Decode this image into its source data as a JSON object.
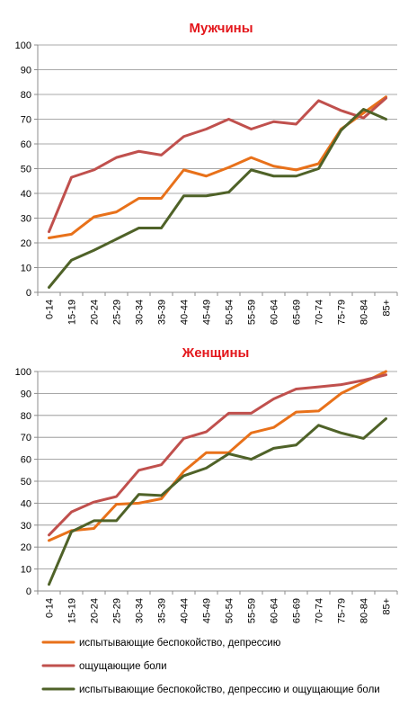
{
  "chart_data": [
    {
      "type": "line",
      "title": "Мужчины",
      "categories": [
        "0-14",
        "15-19",
        "20-24",
        "25-29",
        "30-34",
        "35-39",
        "40-44",
        "45-49",
        "50-54",
        "55-59",
        "60-64",
        "65-69",
        "70-74",
        "75-79",
        "80-84",
        "85+"
      ],
      "ylim": [
        0,
        100
      ],
      "yticks": [
        0,
        10,
        20,
        30,
        40,
        50,
        60,
        70,
        80,
        90,
        100
      ],
      "grid": true,
      "series": [
        {
          "name": "испытывающие беспокойство, депрессию",
          "color": "#e8711a",
          "values": [
            22,
            23.5,
            30.5,
            32.5,
            38,
            38,
            49.5,
            47,
            50.5,
            54.5,
            51,
            49.5,
            52,
            66,
            72.5,
            79
          ]
        },
        {
          "name": "ощущающие боли",
          "color": "#c0504d",
          "values": [
            24.5,
            46.5,
            49.5,
            54.5,
            57,
            55.5,
            63,
            66,
            70,
            66,
            69,
            68,
            77.5,
            73.5,
            70.5,
            78.5
          ]
        },
        {
          "name": "испытывающие беспокойство, депрессию и ощущающие боли",
          "color": "#4f6228",
          "values": [
            2,
            13,
            17,
            21.5,
            26,
            26,
            39,
            39,
            40.5,
            49.5,
            47,
            47,
            50,
            65.5,
            74,
            70
          ]
        }
      ]
    },
    {
      "type": "line",
      "title": "Женщины",
      "categories": [
        "0-14",
        "15-19",
        "20-24",
        "25-29",
        "30-34",
        "35-39",
        "40-44",
        "45-49",
        "50-54",
        "55-59",
        "60-64",
        "65-69",
        "70-74",
        "75-79",
        "80-84",
        "85+"
      ],
      "ylim": [
        0,
        100
      ],
      "yticks": [
        0,
        10,
        20,
        30,
        40,
        50,
        60,
        70,
        80,
        90,
        100
      ],
      "grid": true,
      "series": [
        {
          "name": "испытывающие беспокойство, депрессию",
          "color": "#e8711a",
          "values": [
            23,
            27.5,
            28.5,
            39.5,
            40,
            42,
            54.5,
            63,
            63,
            72,
            74.5,
            81.5,
            82,
            90,
            95,
            100
          ]
        },
        {
          "name": "ощущающие боли",
          "color": "#c0504d",
          "values": [
            25.5,
            36,
            40.5,
            43,
            55,
            57.5,
            69.5,
            72.5,
            81,
            81,
            87.5,
            92,
            93,
            94,
            96,
            98.5
          ]
        },
        {
          "name": "испытывающие беспокойство, депрессию и ощущающие боли",
          "color": "#4f6228",
          "values": [
            3,
            27,
            32,
            32,
            44,
            43.5,
            52.5,
            56,
            62.5,
            60,
            65,
            66.5,
            75.5,
            72,
            69.5,
            78.5
          ]
        }
      ]
    }
  ],
  "legend": [
    {
      "label": "испытывающие беспокойство, депрессию",
      "color": "#e8711a"
    },
    {
      "label": "ощущающие боли",
      "color": "#c0504d"
    },
    {
      "label": "испытывающие беспокойство, депрессию и ощущающие боли",
      "color": "#4f6228"
    }
  ]
}
